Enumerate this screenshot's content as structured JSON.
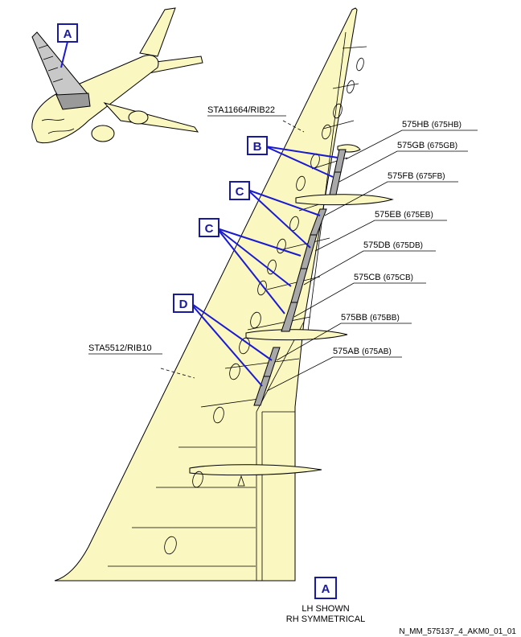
{
  "callouts": {
    "a_top": "A",
    "b": "B",
    "c1": "C",
    "c2": "C",
    "d": "D",
    "a_bottom": "A"
  },
  "stations": {
    "rib22": "STA11664/RIB22",
    "rib10": "STA5512/RIB10"
  },
  "panels": [
    {
      "main": "575HB",
      "alt": "(675HB)"
    },
    {
      "main": "575GB",
      "alt": "(675GB)"
    },
    {
      "main": "575FB",
      "alt": "(675FB)"
    },
    {
      "main": "575EB",
      "alt": "(675EB)"
    },
    {
      "main": "575DB",
      "alt": "(675DB)"
    },
    {
      "main": "575CB",
      "alt": "(675CB)"
    },
    {
      "main": "575BB",
      "alt": "(675BB)"
    },
    {
      "main": "575AB",
      "alt": "(675AB)"
    }
  ],
  "notes": {
    "line1": "LH SHOWN",
    "line2": "RH SYMMETRICAL"
  },
  "reference": "N_MM_575137_4_AKM0_01_01",
  "colors": {
    "wing_fill": "#fbf7c0",
    "callout_blue": "#1a1ad0",
    "panel_gray": "#a8a8a8"
  }
}
